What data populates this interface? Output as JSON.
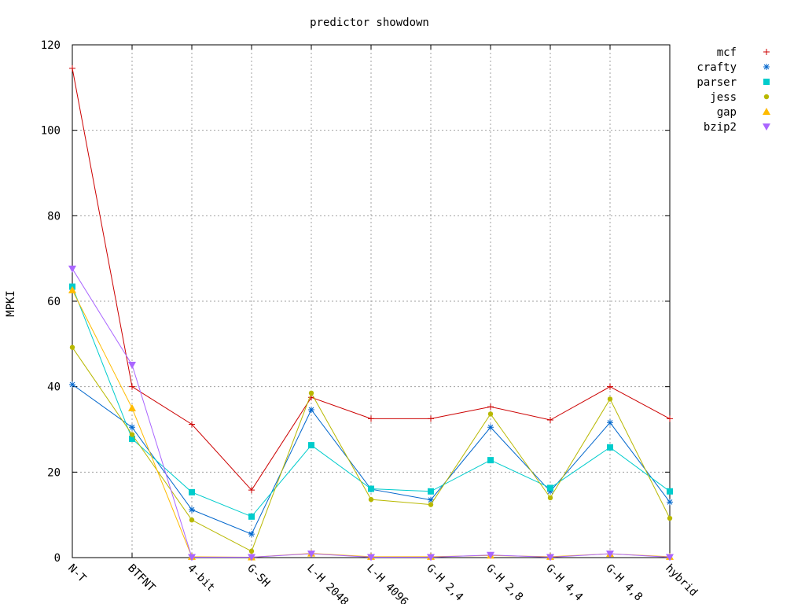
{
  "chart_data": {
    "type": "line",
    "title": "predictor showdown",
    "xlabel": "",
    "ylabel": "MPKI",
    "ylim": [
      0,
      120
    ],
    "yticks": [
      0,
      20,
      40,
      60,
      80,
      100,
      120
    ],
    "grid": true,
    "legend_position": "outside-right",
    "categories": [
      "N-T",
      "BTFNT",
      "4-bit",
      "G-SH",
      "L-H 2048",
      "L-H 4096",
      "G-H 2,4",
      "G-H 2,8",
      "G-H 4,4",
      "G-H 4,8",
      "hybrid"
    ],
    "series": [
      {
        "name": "mcf",
        "color": "#cc0000",
        "marker": "plus",
        "values": [
          114.5,
          40.0,
          31.2,
          15.8,
          37.5,
          32.5,
          32.5,
          35.3,
          32.2,
          40.0,
          32.5
        ]
      },
      {
        "name": "crafty",
        "color": "#0066cc",
        "marker": "star",
        "values": [
          40.5,
          30.5,
          11.2,
          5.5,
          34.6,
          16.0,
          13.5,
          30.5,
          15.5,
          31.6,
          13.0
        ]
      },
      {
        "name": "parser",
        "color": "#00cccc",
        "marker": "square",
        "values": [
          63.4,
          27.8,
          15.3,
          9.6,
          26.3,
          16.1,
          15.5,
          22.8,
          16.3,
          25.8,
          15.5
        ]
      },
      {
        "name": "jess",
        "color": "#b8b800",
        "marker": "circle",
        "values": [
          49.2,
          28.8,
          8.8,
          1.5,
          38.5,
          13.6,
          12.4,
          33.6,
          14.0,
          37.1,
          9.2
        ]
      },
      {
        "name": "gap",
        "color": "#ffbb00",
        "marker": "triangle-up",
        "values": [
          62.6,
          35.0,
          0.2,
          0.1,
          1.0,
          0.2,
          0.2,
          0.5,
          0.2,
          0.9,
          0.2
        ]
      },
      {
        "name": "bzip2",
        "color": "#aa66ff",
        "marker": "triangle-down",
        "values": [
          67.6,
          45.1,
          0.1,
          0.1,
          0.9,
          0.1,
          0.1,
          0.6,
          0.1,
          0.9,
          0.1
        ]
      }
    ]
  }
}
